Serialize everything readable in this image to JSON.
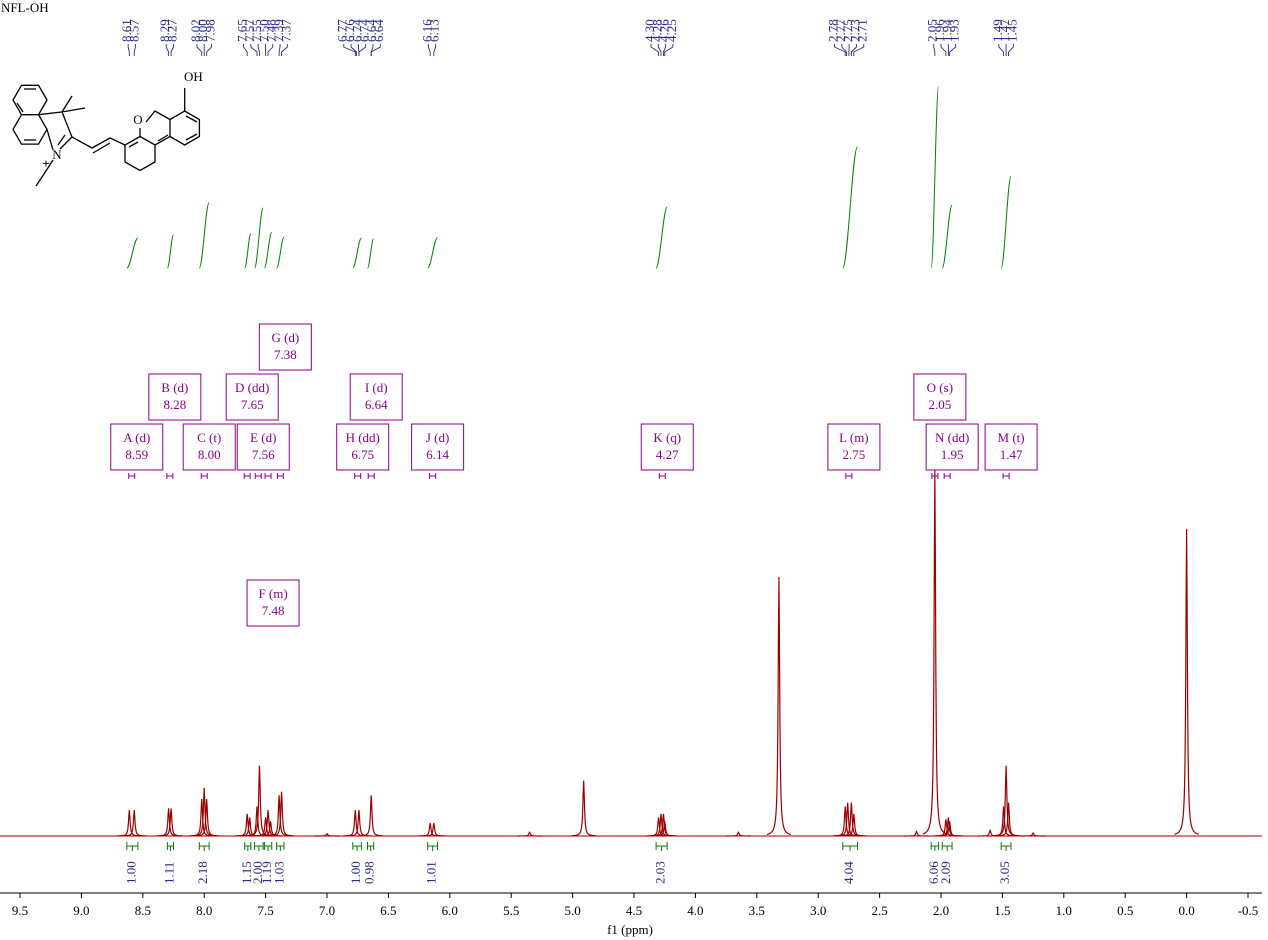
{
  "chart_data": {
    "type": "nmr",
    "title": "NFL-OH",
    "x_label": "f1 (ppm)",
    "color": "#9b0000",
    "xlim": [
      9.663,
      -0.614
    ],
    "ylim": [
      0,
      100
    ],
    "xticks": [
      {
        "value": 9.5,
        "label": "9.5"
      },
      {
        "value": 9,
        "label": "9.0"
      },
      {
        "value": 8.5,
        "label": "8.5"
      },
      {
        "value": 8,
        "label": "8.0"
      },
      {
        "value": 7.5,
        "label": "7.5"
      },
      {
        "value": 7,
        "label": "7.0"
      },
      {
        "value": 6.5,
        "label": "6.5"
      },
      {
        "value": 6,
        "label": "6.0"
      },
      {
        "value": 5.5,
        "label": "5.5"
      },
      {
        "value": 5,
        "label": "5.0"
      },
      {
        "value": 4.5,
        "label": "4.5"
      },
      {
        "value": 4,
        "label": "4.0"
      },
      {
        "value": 3.5,
        "label": "3.5"
      },
      {
        "value": 3,
        "label": "3.0"
      },
      {
        "value": 2.5,
        "label": "2.5"
      },
      {
        "value": 2,
        "label": "2.0"
      },
      {
        "value": 1.5,
        "label": "1.5"
      },
      {
        "value": 1,
        "label": "1.0"
      },
      {
        "value": 0.5,
        "label": "0.5"
      },
      {
        "value": 0,
        "label": "0.0"
      },
      {
        "value": -0.5,
        "label": "-0.5"
      }
    ],
    "x": [
      8.61,
      8.57,
      8.29,
      8.27,
      8.02,
      8.0,
      7.98,
      7.65,
      7.63,
      7.57,
      7.55,
      7.5,
      7.48,
      7.46,
      7.39,
      7.37,
      7.0,
      6.77,
      6.74,
      6.64,
      6.16,
      6.13,
      5.35,
      4.91,
      4.3,
      4.28,
      4.26,
      4.25,
      3.65,
      3.32,
      2.78,
      2.76,
      2.73,
      2.71,
      2.2,
      2.05,
      1.96,
      1.94,
      1.93,
      1.6,
      1.49,
      1.47,
      1.45,
      1.25,
      0.0
    ],
    "values": [
      7,
      7,
      7.5,
      7.5,
      10,
      13,
      10,
      6,
      5,
      8,
      19,
      5,
      7,
      4,
      11,
      12,
      0.6,
      7,
      7,
      11,
      3.5,
      3.5,
      1,
      15,
      5,
      6,
      6,
      4,
      1,
      70,
      8,
      9,
      9,
      6,
      1.2,
      99,
      4.5,
      5,
      4,
      1.5,
      8,
      19,
      9,
      0.8,
      83
    ],
    "peak_labels": [
      8.61,
      8.57,
      8.29,
      8.27,
      8.02,
      {
        "value": 8,
        "label": "8.00"
      },
      7.98,
      7.65,
      7.57,
      7.55,
      {
        "value": 7.5,
        "label": "7.50"
      },
      7.48,
      7.39,
      7.37,
      6.77,
      6.76,
      6.74,
      6.74,
      6.64,
      6.64,
      6.16,
      6.13,
      {
        "value": 4.3,
        "label": "4.30"
      },
      4.28,
      4.26,
      4.25,
      2.78,
      2.77,
      2.75,
      2.73,
      2.71,
      2.05,
      1.96,
      1.94,
      1.93,
      1.49,
      1.47,
      1.45
    ],
    "multiplets": [
      {
        "name": "A (d)",
        "shift": 8.59
      },
      {
        "name": "B (d)",
        "shift": 8.28
      },
      {
        "name": "C (t)",
        "shift": {
          "value": 8,
          "label": "8.00"
        }
      },
      {
        "name": "D (dd)",
        "shift": 7.65
      },
      {
        "name": "E (d)",
        "shift": 7.56
      },
      {
        "name": "F (m)",
        "shift": 7.48
      },
      {
        "name": "G (d)",
        "shift": 7.38
      },
      {
        "name": "H (dd)",
        "shift": 6.75
      },
      {
        "name": "I (d)",
        "shift": 6.64
      },
      {
        "name": "J (d)",
        "shift": 6.14
      },
      {
        "name": "K (q)",
        "shift": 4.27
      },
      {
        "name": "L (m)",
        "shift": 2.75
      },
      {
        "name": "M (t)",
        "shift": 1.47
      },
      {
        "name": "N (dd)",
        "shift": 1.95
      },
      {
        "name": "O (s)",
        "shift": 2.05
      }
    ],
    "integrals": [
      {
        "value": 1,
        "label": "1.00",
        "range": [
          8.63,
          8.54
        ]
      },
      {
        "value": 1.11,
        "label": "1.11",
        "range": [
          8.3,
          8.25
        ]
      },
      {
        "value": 2.18,
        "label": "2.18",
        "range": [
          8.04,
          7.96
        ]
      },
      {
        "value": 1.15,
        "label": "1.15",
        "range": [
          7.67,
          7.62
        ]
      },
      {
        "value": 2,
        "label": "2.00",
        "range": [
          7.59,
          7.52
        ]
      },
      {
        "value": 1.19,
        "label": "1.19",
        "range": [
          7.51,
          7.45
        ]
      },
      {
        "value": 1.03,
        "label": "1.03",
        "range": [
          7.41,
          7.35
        ]
      },
      {
        "value": 1,
        "label": "1.00",
        "range": [
          6.79,
          6.72
        ]
      },
      {
        "value": 0.98,
        "label": "0.98",
        "range": [
          6.67,
          6.62
        ]
      },
      {
        "value": 1.01,
        "label": "1.01",
        "range": [
          6.18,
          6.1
        ]
      },
      {
        "value": 2.03,
        "label": "2.03",
        "range": [
          4.32,
          4.23
        ]
      },
      {
        "value": 4.04,
        "label": "4.04",
        "range": [
          2.8,
          2.68
        ]
      },
      {
        "value": 6.06,
        "label": "6.06",
        "range": [
          2.08,
          2.02
        ]
      },
      {
        "value": 2.09,
        "label": "2.09",
        "range": [
          1.99,
          1.91
        ]
      },
      {
        "value": 3.05,
        "label": "3.05",
        "range": [
          1.51,
          1.43
        ]
      }
    ],
    "structure_atoms": [
      "OH",
      "O",
      "N",
      "+"
    ]
  }
}
